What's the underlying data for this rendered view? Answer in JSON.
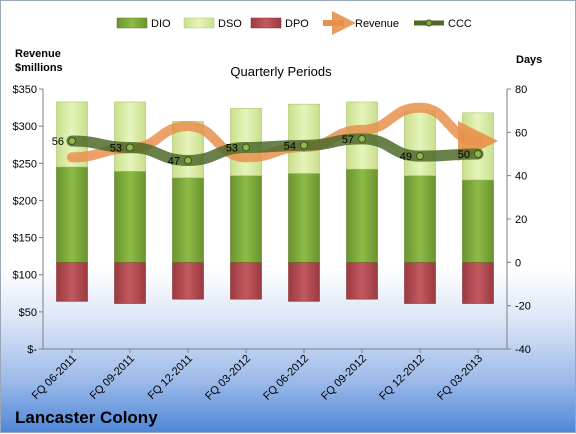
{
  "chart_data": {
    "type": "bar",
    "title": "Quarterly Periods",
    "company": "Lancaster Colony",
    "ylabel_left": [
      "Revenue",
      "$millions"
    ],
    "ylabel_right": "Days",
    "categories": [
      "FQ 06-2011",
      "FQ 09-2011",
      "FQ 12-2011",
      "FQ 03-2012",
      "FQ 06-2012",
      "FQ 09-2012",
      "FQ 12-2012",
      "FQ 03-2013"
    ],
    "ylim_left": [
      0,
      350
    ],
    "yticks_left": [
      "$-",
      "$50",
      "$100",
      "$150",
      "$200",
      "$250",
      "$300",
      "$350"
    ],
    "ylim_right": [
      -40,
      80
    ],
    "yticks_right": [
      "-40",
      "-20",
      "0",
      "20",
      "40",
      "60",
      "80"
    ],
    "legend_position": "top",
    "legend": [
      "DIO",
      "DSO",
      "DPO",
      "Revenue",
      "CCC"
    ],
    "series": [
      {
        "name": "DIO",
        "axis": "right",
        "values": [
          44,
          42,
          39,
          40,
          41,
          43,
          40,
          38
        ]
      },
      {
        "name": "DSO",
        "axis": "right",
        "values": [
          30,
          32,
          26,
          31,
          32,
          31,
          30,
          31
        ]
      },
      {
        "name": "DPO",
        "axis": "right",
        "values": [
          -18,
          -19,
          -17,
          -17,
          -18,
          -17,
          -19,
          -19
        ]
      },
      {
        "name": "Revenue",
        "axis": "left",
        "values": [
          258,
          270,
          300,
          258,
          272,
          295,
          325,
          280
        ]
      },
      {
        "name": "CCC",
        "axis": "right",
        "values": [
          56,
          53,
          47,
          53,
          54,
          57,
          49,
          50
        ]
      }
    ],
    "ccc_labels": [
      "56",
      "53",
      "47",
      "53",
      "54",
      "57",
      "49",
      "50"
    ],
    "colors": {
      "DIO": "#7fa83a",
      "DSO": "#d7eba0",
      "DPO": "#b0444a",
      "Revenue": "#e8914d",
      "CCC": "#4e6a2a"
    },
    "grid": false
  }
}
